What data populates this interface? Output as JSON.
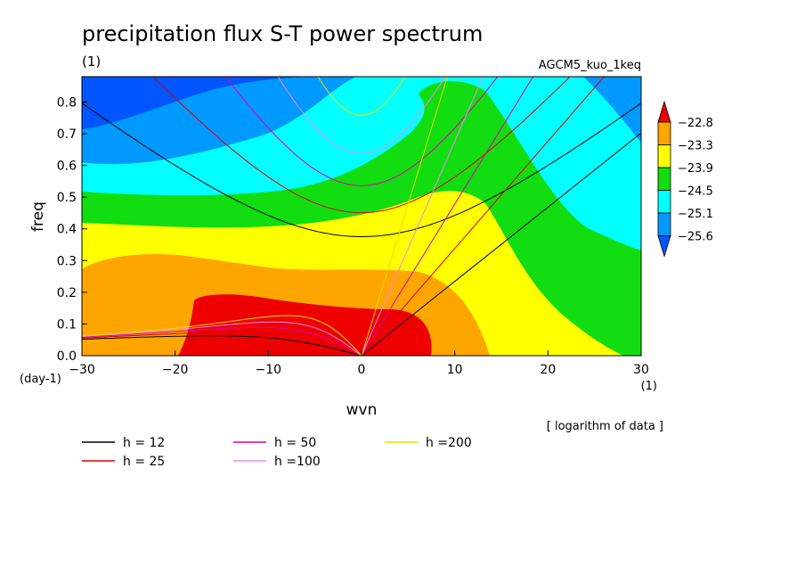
{
  "chart_data": {
    "type": "contour",
    "title": "precipitation flux S-T power spectrum",
    "subtitle_left": "(1)",
    "subtitle_right": "AGCM5_kuo_1keq",
    "xlabel": "wvn",
    "ylabel": "freq",
    "x_unit": "(1)",
    "y_unit": "(day-1)",
    "xlim": [
      -30,
      30
    ],
    "ylim": [
      0,
      0.88
    ],
    "xticks": [
      -30,
      -20,
      -10,
      0,
      10,
      20,
      30
    ],
    "yticks": [
      0.0,
      0.1,
      0.2,
      0.3,
      0.4,
      0.5,
      0.6,
      0.7,
      0.8
    ],
    "note": "[ logarithm of data ]",
    "colorbar": {
      "levels": [
        "-22.8",
        "-23.3",
        "-23.9",
        "-24.5",
        "-25.1",
        "-25.6"
      ],
      "colors": [
        "#ee0000",
        "#ffa500",
        "#ffff00",
        "#11dd11",
        "#00ffff",
        "#0099ff",
        "#0055ff"
      ]
    },
    "dispersion_curves": [
      {
        "label": "h = 12",
        "h": 12,
        "color": "#000000"
      },
      {
        "label": "h = 25",
        "h": 25,
        "color": "#dd0000"
      },
      {
        "label": "h = 50",
        "h": 50,
        "color": "#dd00aa"
      },
      {
        "label": "h =100",
        "h": 100,
        "color": "#ee88ee"
      },
      {
        "label": "h =200",
        "h": 200,
        "color": "#eedd00"
      }
    ]
  }
}
